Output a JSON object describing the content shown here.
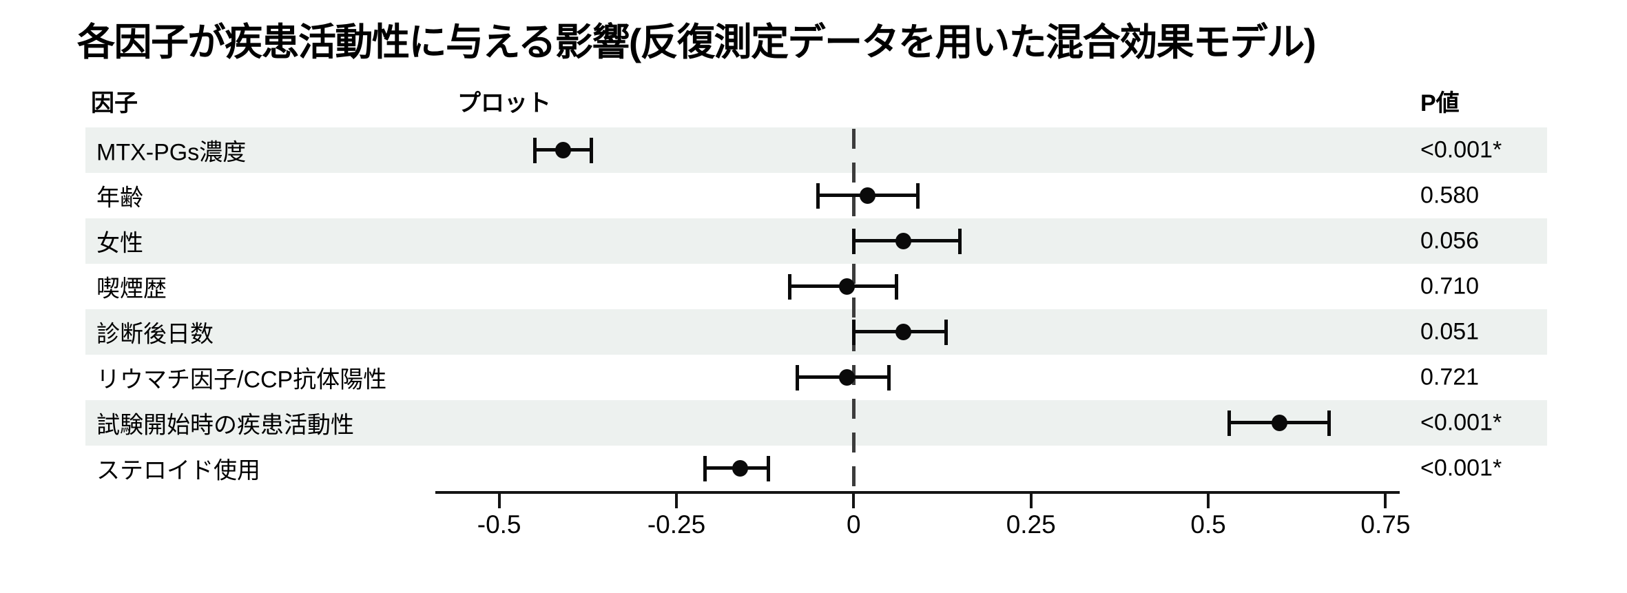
{
  "title": "各因子が疾患活動性に与える影響(反復測定データを用いた混合効果モデル)",
  "table": {
    "headers": {
      "factor": "因子",
      "plot": "プロット",
      "p_value": "P値"
    }
  },
  "chart_data": {
    "type": "scatter",
    "subtype": "forest-plot",
    "title": "各因子が疾患活動性に与える影響(反復測定データを用いた混合効果モデル)",
    "xlabel": "",
    "ylabel": "",
    "xlim": [
      -0.59,
      0.77
    ],
    "x_ticks": [
      -0.5,
      -0.25,
      0,
      0.25,
      0.5,
      0.75
    ],
    "x_tick_labels": [
      "-0.5",
      "-0.25",
      "0",
      "0.25",
      "0.5",
      "0.75"
    ],
    "zero_reference_line": 0,
    "grid": false,
    "legend": false,
    "rows": [
      {
        "factor": "MTX-PGs濃度",
        "estimate": -0.41,
        "ci_low": -0.45,
        "ci_high": -0.37,
        "p_value": "<0.001*"
      },
      {
        "factor": "年齢",
        "estimate": 0.02,
        "ci_low": -0.05,
        "ci_high": 0.09,
        "p_value": "0.580"
      },
      {
        "factor": "女性",
        "estimate": 0.07,
        "ci_low": 0.0,
        "ci_high": 0.15,
        "p_value": "0.056"
      },
      {
        "factor": "喫煙歴",
        "estimate": -0.01,
        "ci_low": -0.09,
        "ci_high": 0.06,
        "p_value": "0.710"
      },
      {
        "factor": "診断後日数",
        "estimate": 0.07,
        "ci_low": 0.0,
        "ci_high": 0.13,
        "p_value": "0.051"
      },
      {
        "factor": "リウマチ因子/CCP抗体陽性",
        "estimate": -0.01,
        "ci_low": -0.08,
        "ci_high": 0.05,
        "p_value": "0.721"
      },
      {
        "factor": "試験開始時の疾患活動性",
        "estimate": 0.6,
        "ci_low": 0.53,
        "ci_high": 0.67,
        "p_value": "<0.001*"
      },
      {
        "factor": "ステロイド使用",
        "estimate": -0.16,
        "ci_low": -0.21,
        "ci_high": -0.12,
        "p_value": "<0.001*"
      }
    ],
    "colors": {
      "marker": "#0a0a0a",
      "zero_line": "#3c3c3c",
      "row_stripe": "#edf1ef",
      "axis": "#141414"
    }
  }
}
